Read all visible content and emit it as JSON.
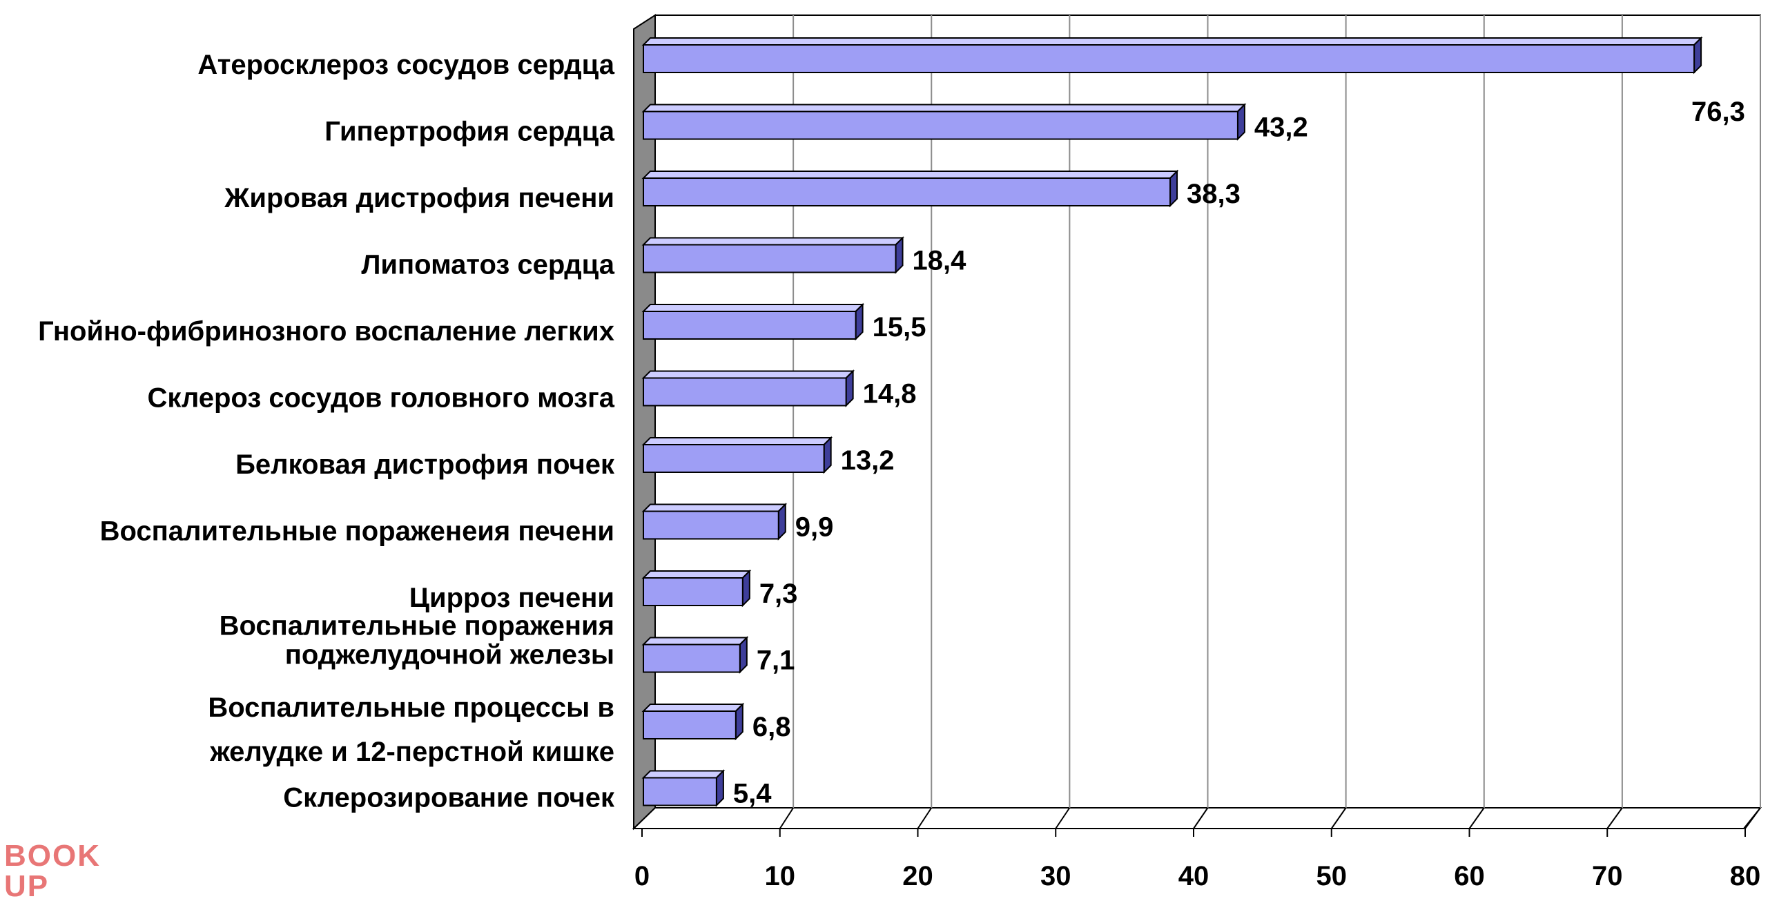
{
  "chart_data": {
    "type": "bar",
    "orientation": "horizontal",
    "categories": [
      [
        "Атеросклероз сосудов сердца"
      ],
      [
        "Гипертрофия сердца"
      ],
      [
        "Жировая дистрофия печени"
      ],
      [
        "Липоматоз сердца"
      ],
      [
        "Гнойно-фибринозного воспаление легких"
      ],
      [
        "Склероз сосудов головного мозга"
      ],
      [
        "Белковая дистрофия почек"
      ],
      [
        "Воспалительные пораженеия печени"
      ],
      [
        "Цирроз печени"
      ],
      [
        "Воспалительные поражения",
        "поджелудочной железы"
      ],
      [
        "Воспалительные процессы в",
        "желудке и 12-перстной кишке"
      ],
      [
        "Склерозирование почек"
      ]
    ],
    "values": [
      76.3,
      43.2,
      38.3,
      18.4,
      15.5,
      14.8,
      13.2,
      9.9,
      7.3,
      7.1,
      6.8,
      5.4
    ],
    "value_labels": [
      "76,3",
      "43,2",
      "38,3",
      "18,4",
      "15,5",
      "14,8",
      "13,2",
      "9,9",
      "7,3",
      "7,1",
      "6,8",
      "5,4"
    ],
    "xlim": [
      0,
      80
    ],
    "xticks": [
      0,
      10,
      20,
      30,
      40,
      50,
      60,
      70,
      80
    ],
    "grid": true,
    "legend": "none",
    "colors": {
      "bar_face": "#9e9ef5",
      "bar_side": "#3e3e9a",
      "bar_top": "#ccccff",
      "bar_outline": "#000000",
      "grid": "#8c8c8c",
      "left_wall": "#8a8a8a",
      "floor": "#ffffff"
    }
  },
  "watermark": {
    "line1": "BOOK",
    "line2": "UP"
  }
}
